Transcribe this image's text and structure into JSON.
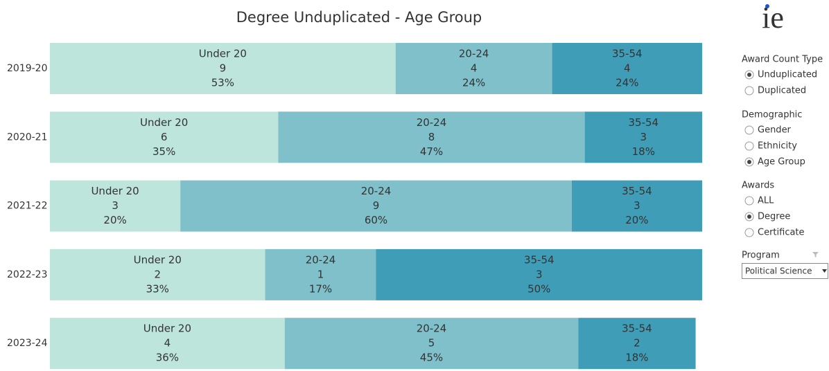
{
  "chart_data": {
    "type": "stacked_bar_100",
    "title": "Degree Unduplicated - Age Group",
    "categories": [
      "2019-20",
      "2020-21",
      "2021-22",
      "2022-23",
      "2023-24"
    ],
    "xlim": [
      0,
      100
    ],
    "series": [
      {
        "name": "Under 20",
        "color": "#bde5dc",
        "counts": [
          9,
          6,
          3,
          2,
          4
        ],
        "values": [
          53,
          35,
          20,
          33,
          36
        ],
        "value_labels": [
          "53%",
          "35%",
          "20%",
          "33%",
          "36%"
        ]
      },
      {
        "name": "20-24",
        "color": "#7fc0ca",
        "counts": [
          4,
          8,
          9,
          1,
          5
        ],
        "values": [
          24,
          47,
          60,
          17,
          45
        ],
        "value_labels": [
          "24%",
          "47%",
          "60%",
          "17%",
          "45%"
        ]
      },
      {
        "name": "35-54",
        "color": "#3f9db7",
        "counts": [
          4,
          3,
          3,
          3,
          2
        ],
        "values": [
          24,
          18,
          20,
          50,
          18
        ],
        "value_labels": [
          "24%",
          "18%",
          "20%",
          "50%",
          "18%"
        ]
      }
    ]
  },
  "sidebar": {
    "logo": "ie",
    "groups": [
      {
        "title": "Award Count Type",
        "options": [
          {
            "label": "Unduplicated",
            "selected": true
          },
          {
            "label": "Duplicated",
            "selected": false
          }
        ]
      },
      {
        "title": "Demographic",
        "options": [
          {
            "label": "Gender",
            "selected": false
          },
          {
            "label": "Ethnicity",
            "selected": false
          },
          {
            "label": "Age Group",
            "selected": true
          }
        ]
      },
      {
        "title": "Awards",
        "options": [
          {
            "label": "ALL",
            "selected": false
          },
          {
            "label": "Degree",
            "selected": true
          },
          {
            "label": "Certificate",
            "selected": false
          }
        ]
      }
    ],
    "program": {
      "title": "Program",
      "value": "Political Science"
    }
  }
}
